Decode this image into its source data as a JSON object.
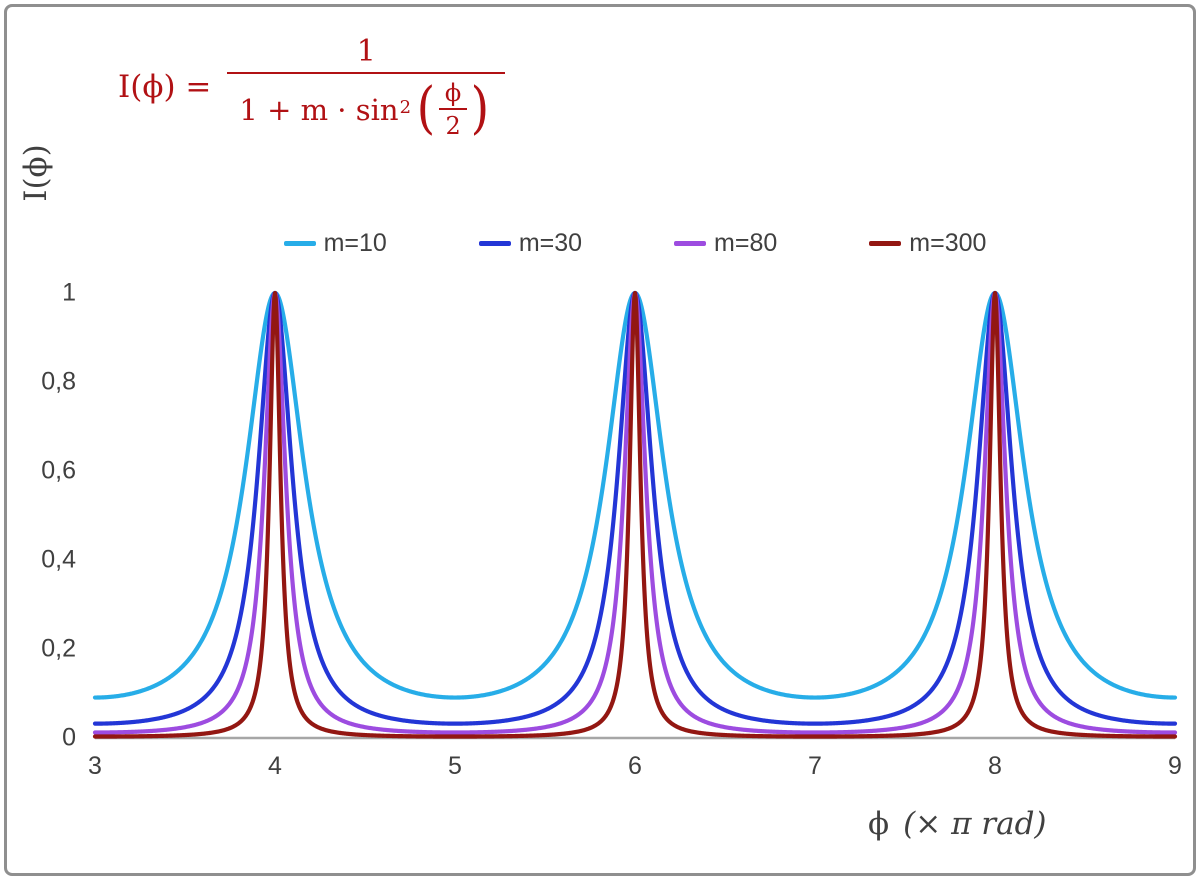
{
  "palette": {
    "formula": "#b11114",
    "axis_text": "#404040",
    "axis_line": "#a6a6a6",
    "frame": "#8f8f8f"
  },
  "annotation": {
    "lhs": "I(ϕ) =",
    "numerator": "1",
    "den_prefix": "1 + m · sin",
    "den_sup": "2",
    "lparen": "(",
    "rparen": ")",
    "inner_num": "ϕ",
    "inner_den": "2"
  },
  "axes": {
    "ylabel": "I(ϕ)",
    "xlabel_symbol": "ϕ",
    "xlabel_units": "(× π rad)"
  },
  "chart_data": {
    "type": "line",
    "title": "",
    "formula": "I(phi) = 1 / (1 + m * sin^2(phi/2)), x axis in units of pi rad",
    "xlim": [
      3,
      9
    ],
    "ylim": [
      0,
      1
    ],
    "grid": false,
    "legend_position": "top-center",
    "peak_positions_x": [
      4,
      6,
      8
    ],
    "peak_value": 1,
    "x_ticks": [
      {
        "value": 3,
        "label": "3"
      },
      {
        "value": 4,
        "label": "4"
      },
      {
        "value": 5,
        "label": "5"
      },
      {
        "value": 6,
        "label": "6"
      },
      {
        "value": 7,
        "label": "7"
      },
      {
        "value": 8,
        "label": "8"
      },
      {
        "value": 9,
        "label": "9"
      }
    ],
    "y_ticks": [
      {
        "value": 0,
        "label": "0"
      },
      {
        "value": 0.2,
        "label": "0,2"
      },
      {
        "value": 0.4,
        "label": "0,4"
      },
      {
        "value": 0.6,
        "label": "0,6"
      },
      {
        "value": 0.8,
        "label": "0,8"
      },
      {
        "value": 1,
        "label": "1"
      }
    ],
    "series": [
      {
        "name": "m=10",
        "m": 10,
        "color": "#27ade8",
        "min_value": 0.0909
      },
      {
        "name": "m=30",
        "m": 30,
        "color": "#2336d6",
        "min_value": 0.0323
      },
      {
        "name": "m=80",
        "m": 80,
        "color": "#9d4ce0",
        "min_value": 0.0123
      },
      {
        "name": "m=300",
        "m": 300,
        "color": "#931712",
        "min_value": 0.0033
      }
    ]
  }
}
